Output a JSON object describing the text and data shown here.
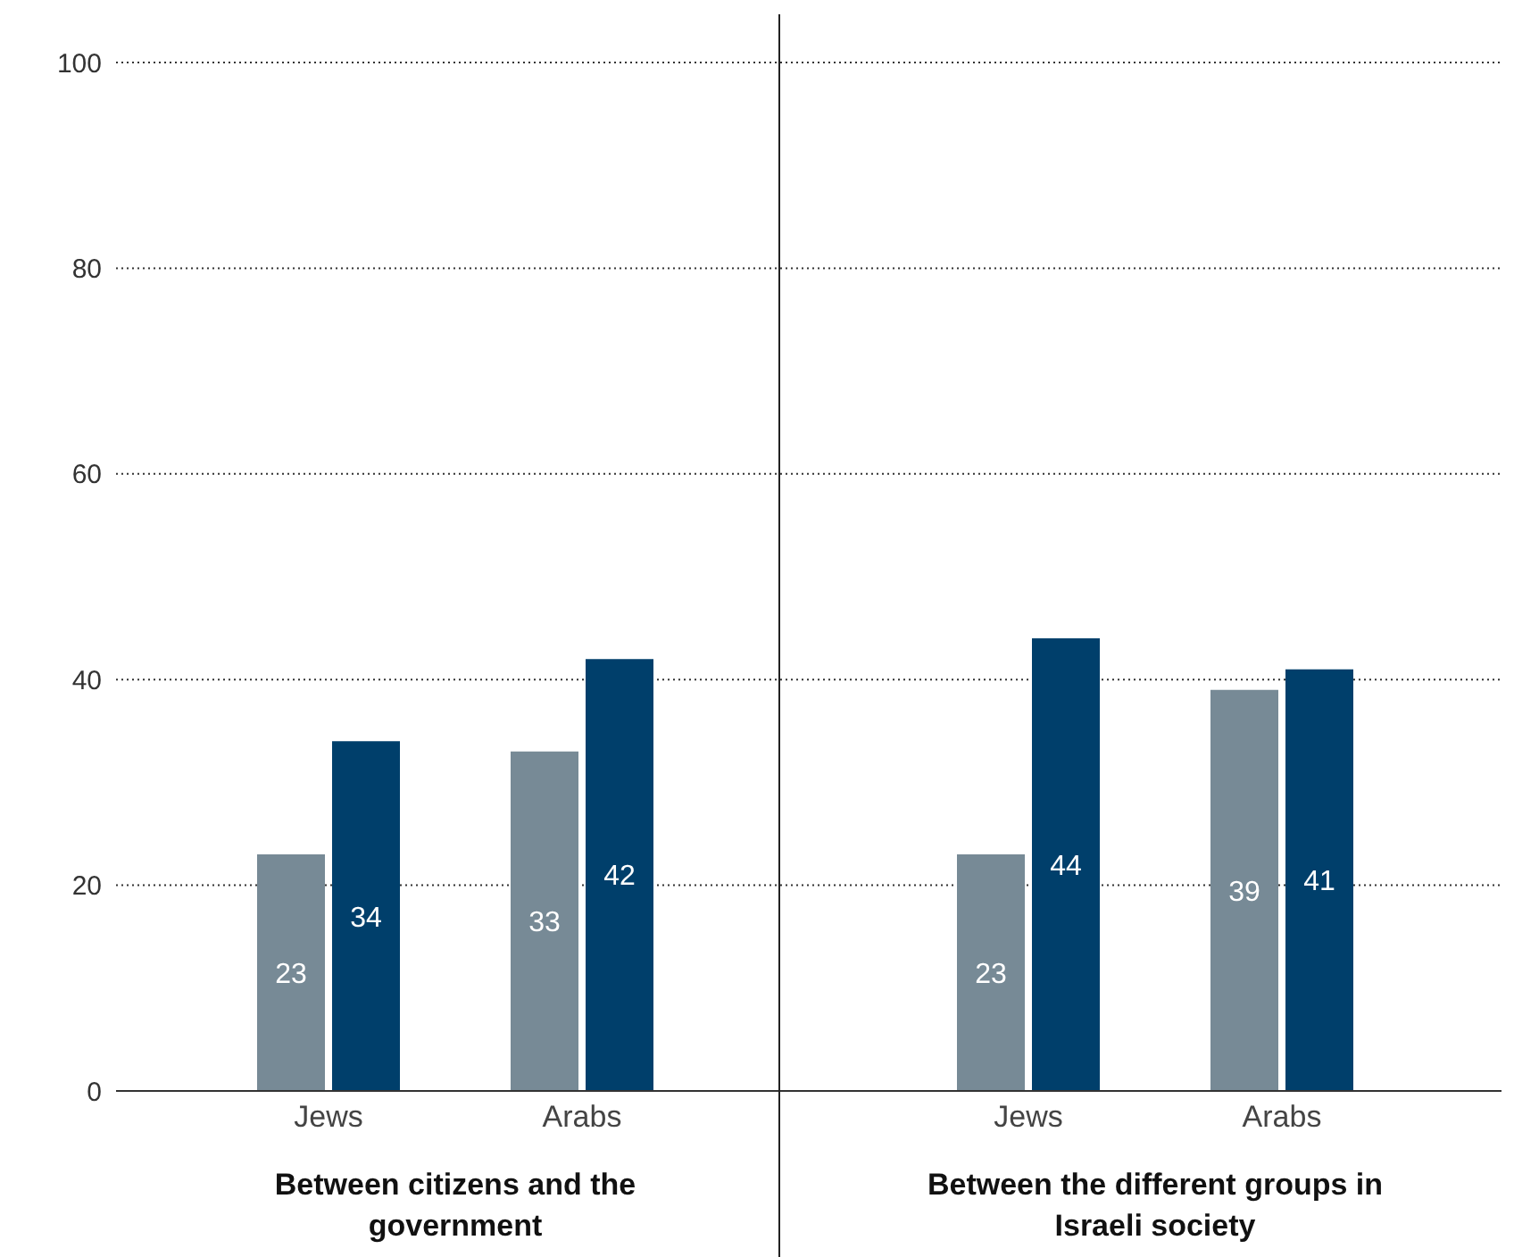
{
  "chart_data": [
    {
      "type": "bar",
      "categories": [
        "Jews",
        "Arabs"
      ],
      "xlabel": "Between citizens and the government",
      "series": [
        {
          "color": "#778a96",
          "values": [
            23,
            33
          ]
        },
        {
          "color": "#003f6b",
          "values": [
            34,
            42
          ]
        }
      ],
      "ylim": [
        0,
        100
      ],
      "yticks": [
        0,
        20,
        40,
        60,
        80,
        100
      ],
      "grid": "y",
      "legend": false,
      "data_labels": true
    },
    {
      "type": "bar",
      "categories": [
        "Jews",
        "Arabs"
      ],
      "xlabel": "Between the different groups in Israeli society",
      "series": [
        {
          "color": "#778a96",
          "values": [
            23,
            39
          ]
        },
        {
          "color": "#003f6b",
          "values": [
            44,
            41
          ]
        }
      ],
      "ylim": [
        0,
        100
      ],
      "yticks": [
        0,
        20,
        40,
        60,
        80,
        100
      ],
      "grid": "y",
      "legend": false,
      "data_labels": true,
      "tick_labels": "x"
    }
  ]
}
